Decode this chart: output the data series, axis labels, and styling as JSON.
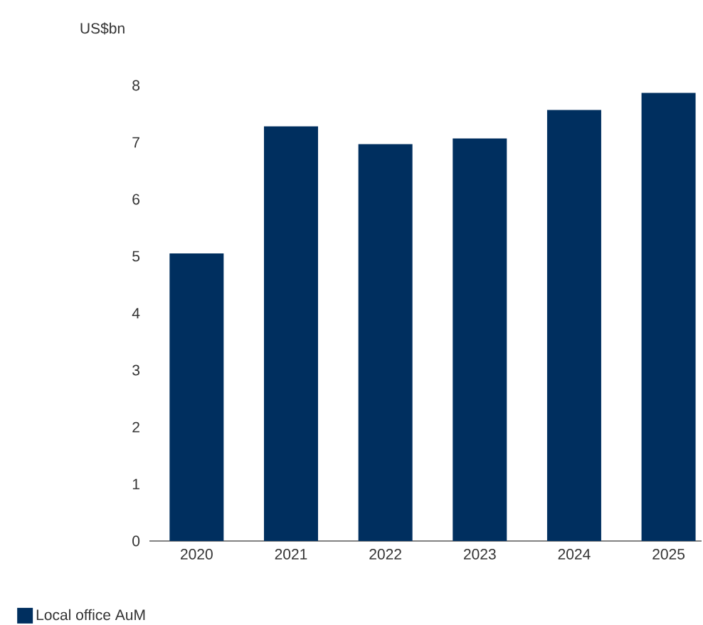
{
  "chart_data": {
    "type": "bar",
    "ylabel": "US$bn",
    "categories": [
      "2020",
      "2021",
      "2022",
      "2023",
      "2024",
      "2025"
    ],
    "series": [
      {
        "name": "Local office AuM",
        "color": "#002f5f",
        "values": [
          5.05,
          7.28,
          6.97,
          7.07,
          7.57,
          7.87
        ]
      }
    ],
    "ylim": [
      0,
      8
    ],
    "yticks": [
      0,
      1,
      2,
      3,
      4,
      5,
      6,
      7,
      8
    ],
    "legend": "bottom left"
  }
}
